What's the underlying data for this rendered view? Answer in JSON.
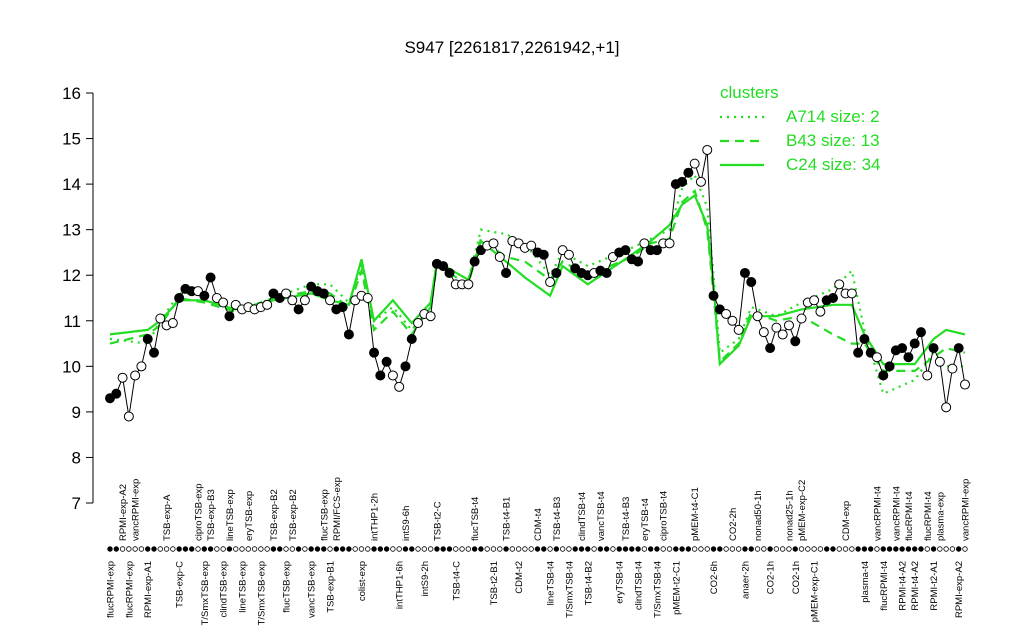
{
  "chart_data": {
    "type": "line",
    "title": "S947 [2261817,2261942,+1]",
    "ylim": [
      7,
      16
    ],
    "yticks": [
      7,
      8,
      9,
      10,
      11,
      12,
      13,
      14,
      15,
      16
    ],
    "categories": [
      "flucRPMI-exp",
      null,
      "RPMI-exp-A2",
      "flucRPMI-exp",
      "vancRPMI-exp",
      null,
      "RPMI-exp-A1",
      null,
      null,
      "TSB-exp-A",
      null,
      "TSB-exp-C",
      null,
      null,
      "ciproTSB-exp",
      "T/SmxTSB-exp",
      "TSB-exp-B3",
      null,
      "clindTSB-exp",
      "lineTSB-exp",
      null,
      "lineTSB-exp",
      "eryTSB-exp",
      null,
      "T/SmxTSB-exp",
      null,
      "TSB-exp-B2",
      null,
      "flucTSB-exp",
      "TSB-exp-B2",
      null,
      null,
      "vancTSB-exp",
      null,
      "flucTSB-exp",
      "TSB-exp-B1",
      "RPMI/FCS-exp",
      null,
      null,
      null,
      "colist-exp",
      null,
      "intTHP1-2h",
      null,
      null,
      null,
      "intTHP1-6h",
      "intS9-6h",
      null,
      null,
      "intS9-2h",
      null,
      "TSB-t2-C",
      null,
      null,
      "TSB-t4-C",
      null,
      null,
      "flucTSB-t4",
      null,
      null,
      "TSB-t2-B1",
      null,
      "TSB-t4-B1",
      null,
      "CDM-t2",
      null,
      null,
      "CDM-t4",
      null,
      "lineTSB-t4",
      "TSB-t4-B3",
      null,
      "T/SmxTSB-t4",
      null,
      "clindTSB-t4",
      "TSB-t4-B2",
      null,
      "vancTSB-t4",
      null,
      null,
      "eryTSB-t4",
      "TSB-t4-B3",
      null,
      "clindTSB-t4",
      "eryTSB-t4",
      null,
      "T/SmxTSB-t4",
      "ciproTSB-t4",
      null,
      "pMEM-t2-C1",
      null,
      null,
      "pMEM-t4-C1",
      null,
      null,
      "CO2-6h",
      null,
      null,
      "CO2-2h",
      null,
      "anaer-2h",
      null,
      "nonad50-1h",
      null,
      "CO2-1h",
      null,
      null,
      "nonad25-1h",
      "CO2-1h",
      "pMEM-exp-C2",
      null,
      "pMEM-exp-C1",
      null,
      null,
      null,
      null,
      "CDM-exp",
      null,
      null,
      "plasma-t4",
      null,
      "vancRPMI-t4",
      "flucRPMI-t4",
      null,
      "vancRPMI-t4",
      "RPMI-t4-A2",
      "flucRPMI-t4",
      "RPMI-t4-A2",
      null,
      "flucRPMI-t4",
      "RPMI-t2-A1",
      "plasma-exp",
      null,
      null,
      "RPMI-exp-A2",
      "vancRPMI-exp"
    ],
    "series": [
      {
        "color": "#000000",
        "values": [
          9.3,
          9.4,
          9.75,
          8.9,
          9.8,
          10.0,
          10.6,
          10.3,
          11.05,
          10.9,
          10.95,
          11.5,
          11.7,
          11.65,
          11.65,
          11.55,
          11.95,
          11.5,
          11.4,
          11.1,
          11.35,
          11.25,
          11.3,
          11.25,
          11.3,
          11.35,
          11.6,
          11.5,
          11.6,
          11.45,
          11.25,
          11.45,
          11.75,
          11.65,
          11.6,
          11.45,
          11.25,
          11.3,
          10.7,
          11.45,
          11.55,
          11.5,
          10.3,
          9.8,
          10.1,
          9.8,
          9.55,
          10.0,
          10.6,
          10.95,
          11.15,
          11.1,
          12.25,
          12.2,
          12.05,
          11.8,
          11.8,
          11.8,
          12.3,
          12.55,
          12.65,
          12.7,
          12.4,
          12.05,
          12.75,
          12.7,
          12.6,
          12.65,
          12.5,
          12.45,
          11.85,
          12.05,
          12.55,
          12.45,
          12.15,
          12.05,
          12.0,
          12.05,
          12.1,
          12.05,
          12.4,
          12.5,
          12.55,
          12.35,
          12.3,
          12.7,
          12.55,
          12.55,
          12.7,
          12.7,
          14.0,
          14.05,
          14.25,
          14.45,
          14.05,
          14.75,
          11.55,
          11.25,
          11.15,
          11.0,
          10.8,
          12.05,
          11.85,
          11.1,
          10.75,
          10.4,
          10.85,
          10.7,
          10.9,
          10.55,
          11.05,
          11.4,
          11.45,
          11.2,
          11.45,
          11.5,
          11.8,
          11.6,
          11.6,
          10.3,
          10.6,
          10.3,
          10.2,
          9.8,
          10.0,
          10.35,
          10.4,
          10.2,
          10.5,
          10.75,
          9.8,
          10.4,
          10.1,
          9.1,
          9.95,
          10.4,
          9.6
        ],
        "marker_filled": [
          true,
          true,
          false,
          false,
          false,
          false,
          true,
          true,
          false,
          false,
          false,
          true,
          true,
          true,
          false,
          true,
          true,
          false,
          false,
          true,
          false,
          false,
          false,
          false,
          false,
          false,
          true,
          true,
          false,
          false,
          true,
          false,
          true,
          true,
          true,
          false,
          true,
          true,
          true,
          false,
          false,
          false,
          true,
          true,
          true,
          false,
          false,
          true,
          true,
          false,
          false,
          false,
          true,
          true,
          true,
          false,
          false,
          false,
          true,
          true,
          false,
          false,
          false,
          true,
          false,
          false,
          false,
          false,
          true,
          true,
          false,
          true,
          false,
          false,
          true,
          true,
          true,
          false,
          true,
          true,
          false,
          true,
          true,
          true,
          true,
          false,
          true,
          true,
          false,
          false,
          true,
          true,
          true,
          false,
          false,
          false,
          true,
          true,
          false,
          false,
          false,
          true,
          true,
          false,
          false,
          true,
          false,
          false,
          false,
          true,
          false,
          false,
          false,
          false,
          true,
          true,
          false,
          false,
          false,
          true,
          true,
          true,
          false,
          true,
          true,
          true,
          true,
          true,
          true,
          true,
          false,
          true,
          false,
          false,
          false,
          true,
          false
        ]
      }
    ],
    "clusters": {
      "title": "clusters",
      "color": "#22dd22",
      "series": [
        {
          "name": "A714 size: 2",
          "dash": "dotted",
          "x": [
            0,
            6,
            8,
            11,
            15,
            20,
            26,
            32,
            35,
            38,
            40,
            42,
            45,
            48,
            51,
            52,
            57,
            59,
            63,
            66,
            70,
            72,
            76,
            83,
            86,
            89,
            91,
            93,
            95,
            96,
            97,
            100,
            102,
            106,
            110,
            115,
            118,
            120,
            123,
            128,
            131,
            133,
            136
          ],
          "values": [
            10.6,
            10.5,
            11.0,
            11.6,
            11.6,
            11.2,
            11.5,
            11.8,
            11.8,
            11.4,
            12.2,
            11.0,
            11.3,
            10.8,
            11.3,
            12.3,
            11.9,
            13.0,
            12.9,
            12.7,
            12.0,
            12.5,
            12.2,
            12.6,
            12.8,
            13.0,
            13.9,
            14.2,
            13.5,
            12.0,
            10.3,
            10.6,
            11.3,
            11.1,
            11.4,
            11.7,
            12.1,
            10.8,
            9.4,
            9.7,
            10.3,
            10.0,
            10.0
          ]
        },
        {
          "name": "B43 size: 13",
          "dash": "dashed",
          "x": [
            0,
            6,
            8,
            11,
            15,
            20,
            26,
            32,
            35,
            38,
            40,
            42,
            45,
            48,
            51,
            52,
            57,
            59,
            63,
            66,
            70,
            72,
            76,
            83,
            86,
            89,
            91,
            93,
            95,
            96,
            97,
            100,
            102,
            106,
            110,
            115,
            118,
            120,
            123,
            128,
            131,
            133,
            136
          ],
          "values": [
            10.5,
            10.7,
            10.9,
            11.5,
            11.4,
            11.2,
            11.5,
            11.65,
            11.6,
            11.3,
            12.1,
            10.8,
            11.2,
            10.7,
            11.3,
            12.2,
            11.8,
            12.8,
            12.4,
            12.3,
            11.9,
            12.3,
            12.0,
            12.4,
            12.7,
            12.8,
            13.6,
            13.85,
            13.0,
            11.6,
            10.1,
            10.5,
            11.2,
            11.0,
            11.1,
            10.7,
            10.5,
            10.5,
            9.9,
            9.9,
            10.2,
            10.4,
            10.3
          ]
        },
        {
          "name": "C24 size: 34",
          "dash": "solid",
          "x": [
            0,
            6,
            8,
            11,
            15,
            20,
            26,
            32,
            35,
            38,
            40,
            42,
            45,
            48,
            51,
            52,
            57,
            59,
            63,
            66,
            70,
            72,
            76,
            83,
            86,
            89,
            91,
            93,
            95,
            96,
            97,
            100,
            102,
            106,
            110,
            115,
            118,
            120,
            123,
            128,
            131,
            133,
            136
          ],
          "values": [
            10.7,
            10.8,
            11.0,
            11.45,
            11.45,
            11.25,
            11.45,
            11.6,
            11.45,
            11.35,
            12.35,
            11.0,
            11.45,
            10.95,
            11.4,
            12.3,
            11.9,
            12.75,
            12.3,
            11.95,
            11.55,
            12.2,
            11.8,
            12.45,
            12.75,
            13.1,
            13.55,
            13.75,
            13.1,
            11.8,
            10.05,
            10.45,
            11.1,
            11.1,
            11.25,
            11.35,
            11.35,
            10.7,
            10.05,
            10.05,
            10.6,
            10.8,
            10.7
          ]
        }
      ]
    }
  }
}
